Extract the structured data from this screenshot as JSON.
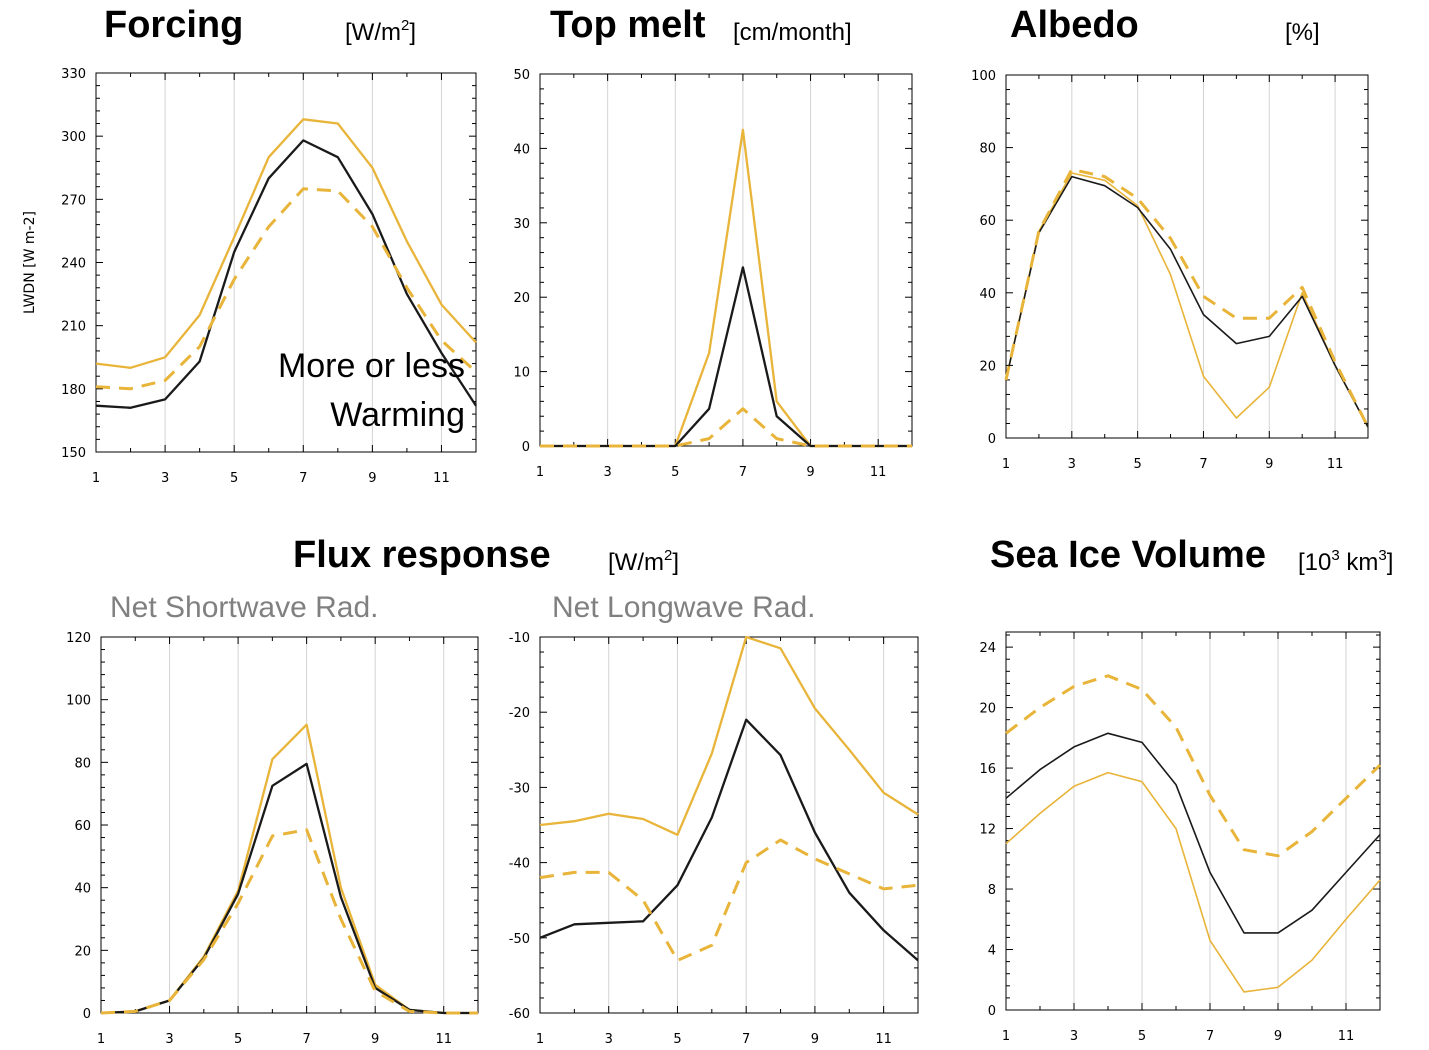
{
  "headings": {
    "forcing": {
      "title": "Forcing",
      "unit_pre": "[W/m",
      "unit_sup": "2",
      "unit_post": "]"
    },
    "top_melt": {
      "title": "Top melt",
      "unit": "[cm/month]"
    },
    "albedo": {
      "title": "Albedo",
      "unit": "[%]"
    },
    "flux": {
      "title": "Flux response",
      "unit_pre": "[W/m",
      "unit_sup": "2",
      "unit_post": "]"
    },
    "volume": {
      "title": "Sea Ice Volume",
      "unit_pre": "[10",
      "unit_sup": "3",
      "unit_mid": " km",
      "unit_sup2": "3",
      "unit_post": "]"
    },
    "net_sw": "Net Shortwave Rad.",
    "net_lw": "Net Longwave Rad."
  },
  "annotation": [
    "More or less",
    "Warming"
  ],
  "colors": {
    "black": "#1a1a1a",
    "gold": "#e8b439",
    "grid": "#d3d3d3"
  },
  "chart_data": [
    {
      "id": "forcing",
      "type": "line",
      "x": [
        1,
        2,
        3,
        4,
        5,
        6,
        7,
        8,
        9,
        10,
        11,
        12
      ],
      "ylim": [
        150,
        330
      ],
      "yticks": [
        150,
        180,
        210,
        240,
        270,
        300,
        330
      ],
      "xticks": [
        1,
        3,
        5,
        7,
        9,
        11
      ],
      "ylabel": "LWDN [W m-2]",
      "series": [
        {
          "style": "gold-solid",
          "values": [
            192,
            190,
            195,
            215,
            252,
            290,
            308,
            306,
            285,
            250,
            220,
            202
          ]
        },
        {
          "style": "black-solid",
          "values": [
            172,
            171,
            175,
            193,
            245,
            280,
            298,
            290,
            263,
            225,
            197,
            172
          ]
        },
        {
          "style": "gold-dashed",
          "values": [
            181,
            180,
            184,
            200,
            232,
            257,
            275,
            274,
            257,
            228,
            203,
            188
          ]
        }
      ]
    },
    {
      "id": "top_melt",
      "type": "line",
      "x": [
        1,
        2,
        3,
        4,
        5,
        6,
        7,
        8,
        9,
        10,
        11,
        12
      ],
      "ylim": [
        0,
        50
      ],
      "yticks": [
        0,
        10,
        20,
        30,
        40,
        50
      ],
      "xticks": [
        1,
        3,
        5,
        7,
        9,
        11
      ],
      "series": [
        {
          "style": "gold-solid",
          "values": [
            0,
            0,
            0,
            0,
            0,
            12.5,
            42.5,
            6,
            0,
            0,
            0,
            0
          ]
        },
        {
          "style": "black-solid",
          "values": [
            0,
            0,
            0,
            0,
            0,
            5,
            24,
            4,
            0,
            0,
            0,
            0
          ]
        },
        {
          "style": "gold-dashed",
          "values": [
            0,
            0,
            0,
            0,
            0,
            1,
            5,
            1,
            0,
            0,
            0,
            0
          ]
        }
      ]
    },
    {
      "id": "albedo",
      "type": "line",
      "x": [
        1,
        2,
        3,
        4,
        5,
        6,
        7,
        8,
        9,
        10,
        11,
        12
      ],
      "ylim": [
        0,
        100
      ],
      "yticks": [
        0,
        20,
        40,
        60,
        80,
        100
      ],
      "xticks": [
        1,
        3,
        5,
        7,
        9,
        11
      ],
      "series": [
        {
          "style": "gold-solid",
          "values": [
            16,
            57,
            73,
            71,
            64,
            45,
            17,
            5.5,
            14,
            40,
            20,
            3
          ]
        },
        {
          "style": "black-solid",
          "values": [
            16,
            56.5,
            72,
            69.5,
            63.5,
            52,
            34,
            26,
            28,
            39,
            20,
            3
          ]
        },
        {
          "style": "gold-dashed",
          "values": [
            16,
            57,
            74,
            72,
            66,
            55,
            39,
            33,
            33,
            41.5,
            21,
            3
          ]
        }
      ]
    },
    {
      "id": "net_sw",
      "type": "line",
      "x": [
        1,
        2,
        3,
        4,
        5,
        6,
        7,
        8,
        9,
        10,
        11,
        12
      ],
      "ylim": [
        0,
        120
      ],
      "yticks": [
        0,
        20,
        40,
        60,
        80,
        100,
        120
      ],
      "xticks": [
        1,
        3,
        5,
        7,
        9,
        11
      ],
      "series": [
        {
          "style": "gold-solid",
          "values": [
            0,
            0.5,
            4,
            18,
            39,
            81,
            92,
            40,
            9,
            1,
            0,
            0
          ]
        },
        {
          "style": "black-solid",
          "values": [
            0,
            0.5,
            4,
            17.5,
            38,
            72.5,
            79.5,
            37,
            8,
            1,
            0,
            0
          ]
        },
        {
          "style": "gold-dashed",
          "values": [
            0,
            0.5,
            4,
            17,
            35,
            56.5,
            58.5,
            30,
            7,
            0.5,
            0,
            0
          ]
        }
      ]
    },
    {
      "id": "net_lw",
      "type": "line",
      "x": [
        1,
        2,
        3,
        4,
        5,
        6,
        7,
        8,
        9,
        10,
        11,
        12
      ],
      "ylim": [
        -60,
        -10
      ],
      "yticks": [
        -60,
        -50,
        -40,
        -30,
        -20,
        -10
      ],
      "xticks": [
        1,
        3,
        5,
        7,
        9,
        11
      ],
      "series": [
        {
          "style": "gold-solid",
          "values": [
            -35,
            -34.5,
            -33.5,
            -34.2,
            -36.3,
            -25.5,
            -10,
            -11.5,
            -19.5,
            -25,
            -30.7,
            -33.6
          ]
        },
        {
          "style": "black-solid",
          "values": [
            -50,
            -48.2,
            -48,
            -47.8,
            -43,
            -34,
            -21,
            -25.7,
            -36,
            -44,
            -49,
            -53
          ]
        },
        {
          "style": "gold-dashed",
          "values": [
            -42,
            -41.3,
            -41.3,
            -45,
            -53,
            -51,
            -40,
            -37,
            -39.5,
            -41.5,
            -43.5,
            -43
          ]
        }
      ]
    },
    {
      "id": "volume",
      "type": "line",
      "x": [
        1,
        2,
        3,
        4,
        5,
        6,
        7,
        8,
        9,
        10,
        11,
        12
      ],
      "ylim": [
        0,
        25
      ],
      "yticks": [
        0,
        4,
        8,
        12,
        16,
        20,
        24
      ],
      "xticks": [
        1,
        3,
        5,
        7,
        9,
        11
      ],
      "series": [
        {
          "style": "gold-dashed",
          "values": [
            18.3,
            20,
            21.4,
            22.1,
            21.2,
            18.7,
            14.2,
            10.6,
            10.2,
            11.8,
            14,
            16.2
          ]
        },
        {
          "style": "black-solid",
          "values": [
            14,
            15.9,
            17.4,
            18.3,
            17.7,
            14.9,
            9.1,
            5.1,
            5.1,
            6.6,
            9.1,
            11.6
          ]
        },
        {
          "style": "gold-solid",
          "values": [
            11,
            13,
            14.8,
            15.7,
            15.1,
            12,
            4.6,
            1.2,
            1.5,
            3.3,
            6,
            8.6
          ]
        }
      ]
    }
  ]
}
